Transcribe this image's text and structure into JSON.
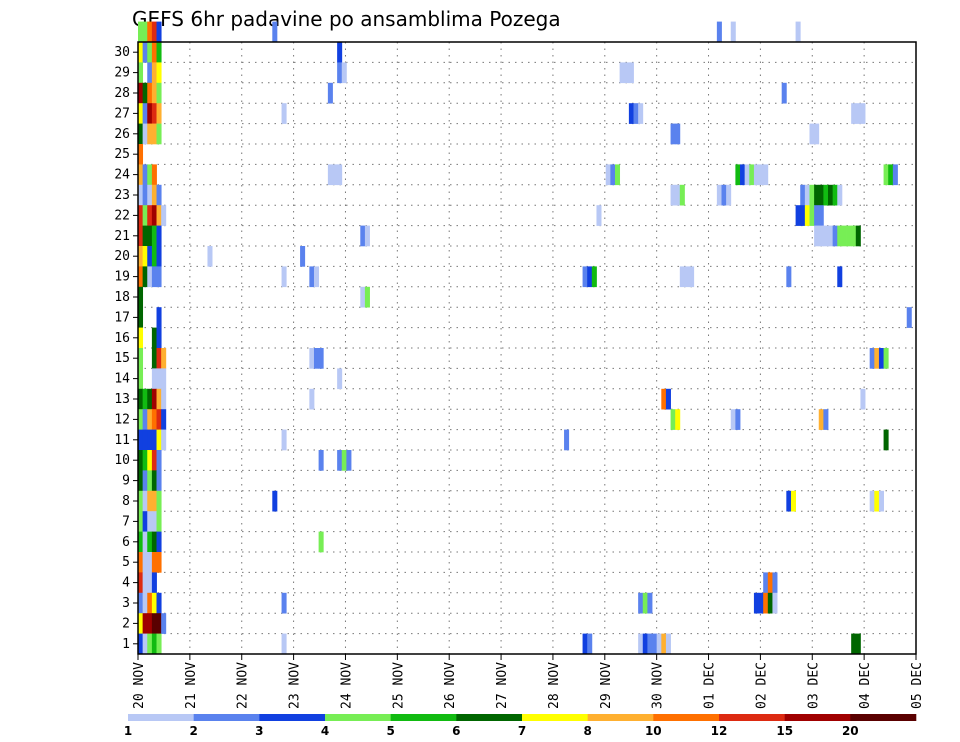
{
  "chart_data": {
    "type": "heatmap",
    "title": "GEFS 6hr padavine po ansamblima Pozega",
    "x_tick_labels": [
      "20 NOV",
      "21 NOV",
      "22 NOV",
      "23 NOV",
      "24 NOV",
      "25 NOV",
      "26 NOV",
      "27 NOV",
      "28 NOV",
      "29 NOV",
      "30 NOV",
      "01 DEC",
      "02 DEC",
      "03 DEC",
      "04 DEC",
      "05 DEC"
    ],
    "y_tick_labels": [
      "1",
      "2",
      "3",
      "4",
      "5",
      "6",
      "7",
      "8",
      "9",
      "10",
      "11",
      "12",
      "13",
      "14",
      "15",
      "16",
      "17",
      "18",
      "19",
      "20",
      "21",
      "22",
      "23",
      "24",
      "25",
      "26",
      "27",
      "28",
      "29",
      "30"
    ],
    "grid": "dotted",
    "colorbar": {
      "placement": "bottom",
      "labels": [
        "1",
        "2",
        "3",
        "4",
        "5",
        "6",
        "7",
        "8",
        "10",
        "12",
        "15",
        "20"
      ],
      "colors": [
        "#b8c8f5",
        "#5a82ee",
        "#1140e0",
        "#77ee55",
        "#11bb11",
        "#006600",
        "#ffff00",
        "#ffb030",
        "#ff7000",
        "#dd2a11",
        "#a00000",
        "#5a0000"
      ]
    },
    "cells": [
      [
        0,
        30,
        [
          4,
          4,
          9,
          10,
          3
        ]
      ],
      [
        29,
        30,
        2
      ],
      [
        125,
        30,
        2
      ],
      [
        128,
        30,
        1
      ],
      [
        142,
        30,
        1
      ],
      [
        0,
        29,
        [
          7,
          2,
          4,
          9,
          5
        ]
      ],
      [
        43,
        29,
        3
      ],
      [
        0,
        28,
        [
          4,
          0,
          2,
          8,
          7
        ]
      ],
      [
        43,
        28,
        [
          2,
          1
        ]
      ],
      [
        104,
        28,
        [
          1,
          1,
          1
        ]
      ],
      [
        0,
        27,
        [
          11,
          6,
          9,
          8,
          4
        ]
      ],
      [
        41,
        27,
        2
      ],
      [
        139,
        27,
        2
      ],
      [
        0,
        26,
        [
          7,
          2,
          11,
          10,
          8
        ]
      ],
      [
        31,
        26,
        1
      ],
      [
        106,
        26,
        [
          3,
          2,
          1
        ]
      ],
      [
        154,
        26,
        [
          1,
          1,
          1
        ]
      ],
      [
        0,
        25,
        [
          6,
          1,
          8,
          8,
          4
        ]
      ],
      [
        115,
        25,
        [
          2,
          2
        ]
      ],
      [
        145,
        25,
        [
          1,
          1
        ]
      ],
      [
        0,
        24,
        [
          9
        ]
      ],
      [
        0,
        23,
        [
          8,
          2,
          4,
          9,
          0
        ]
      ],
      [
        41,
        23,
        [
          1,
          1,
          1
        ]
      ],
      [
        101,
        23,
        [
          1,
          2,
          4
        ]
      ],
      [
        129,
        23,
        [
          5,
          3,
          1,
          4,
          1,
          1,
          1
        ]
      ],
      [
        161,
        23,
        [
          4,
          5,
          2
        ]
      ],
      [
        0,
        22,
        [
          1,
          2,
          1,
          8,
          2
        ]
      ],
      [
        115,
        22,
        [
          1,
          1,
          4
        ]
      ],
      [
        125,
        22,
        [
          1,
          2,
          1
        ]
      ],
      [
        143,
        22,
        [
          2,
          1,
          4,
          6,
          6,
          5,
          6,
          5,
          1
        ]
      ],
      [
        0,
        21,
        [
          10,
          4,
          10,
          11,
          8,
          1
        ]
      ],
      [
        99,
        21,
        1
      ],
      [
        142,
        21,
        [
          3,
          3,
          7,
          4,
          2,
          2
        ]
      ],
      [
        0,
        20,
        [
          10,
          6,
          6,
          5,
          3
        ]
      ],
      [
        48,
        20,
        [
          2,
          1
        ]
      ],
      [
        146,
        20,
        [
          1,
          1,
          1,
          1,
          2,
          4,
          4,
          4,
          4,
          6
        ]
      ],
      [
        0,
        19,
        [
          8,
          7,
          3,
          5,
          3
        ]
      ],
      [
        15,
        19,
        1
      ],
      [
        35,
        19,
        2
      ],
      [
        0,
        18,
        [
          9,
          6,
          1,
          2,
          2
        ]
      ],
      [
        31,
        18,
        1
      ],
      [
        37,
        18,
        [
          2,
          1
        ]
      ],
      [
        96,
        18,
        [
          2,
          3,
          5
        ]
      ],
      [
        117,
        18,
        [
          1,
          1,
          1
        ]
      ],
      [
        140,
        18,
        2
      ],
      [
        151,
        18,
        3
      ],
      [
        0,
        17,
        [
          6
        ]
      ],
      [
        48,
        17,
        [
          1,
          4
        ]
      ],
      [
        0,
        16,
        [
          6,
          0,
          0,
          0,
          3
        ]
      ],
      [
        166,
        16,
        2
      ],
      [
        0,
        15,
        [
          7,
          0,
          0,
          6,
          3
        ]
      ],
      [
        0,
        14,
        [
          4,
          0,
          0,
          6,
          10,
          8
        ]
      ],
      [
        37,
        14,
        [
          1,
          2,
          2
        ]
      ],
      [
        158,
        14,
        [
          2,
          8,
          3,
          4
        ]
      ],
      [
        0,
        13,
        [
          4,
          0,
          0,
          1,
          1,
          1
        ]
      ],
      [
        43,
        13,
        1
      ],
      [
        0,
        12,
        [
          6,
          5,
          6,
          11,
          8,
          1
        ]
      ],
      [
        37,
        12,
        1
      ],
      [
        113,
        12,
        [
          9,
          3
        ]
      ],
      [
        156,
        12,
        1
      ],
      [
        0,
        11,
        [
          4,
          2,
          8,
          9,
          10,
          3
        ]
      ],
      [
        115,
        11,
        [
          4,
          7
        ]
      ],
      [
        128,
        11,
        [
          1,
          2
        ]
      ],
      [
        147,
        11,
        [
          8,
          2
        ]
      ],
      [
        0,
        10,
        [
          3,
          3,
          3,
          3,
          7,
          1
        ]
      ],
      [
        31,
        10,
        1
      ],
      [
        92,
        10,
        2
      ],
      [
        161,
        10,
        6
      ],
      [
        0,
        9,
        [
          6,
          5,
          7,
          10,
          2
        ]
      ],
      [
        39,
        9,
        2
      ],
      [
        43,
        9,
        [
          2,
          4,
          2
        ]
      ],
      [
        0,
        8,
        [
          6,
          2,
          4,
          6,
          2
        ]
      ],
      [
        0,
        7,
        [
          4,
          1,
          8,
          8,
          4
        ]
      ],
      [
        29,
        7,
        3
      ],
      [
        140,
        7,
        [
          3,
          7
        ]
      ],
      [
        158,
        7,
        [
          1,
          7,
          1
        ]
      ],
      [
        0,
        6,
        [
          4,
          3,
          1,
          1,
          4
        ]
      ],
      [
        0,
        5,
        [
          5,
          1,
          5,
          6,
          3
        ]
      ],
      [
        39,
        5,
        4
      ],
      [
        0,
        4,
        [
          9,
          1,
          1,
          9,
          9
        ]
      ],
      [
        0,
        3,
        [
          10,
          1,
          1,
          3
        ]
      ],
      [
        135,
        3,
        [
          2,
          9,
          2
        ]
      ],
      [
        0,
        2,
        [
          2,
          1,
          9,
          7,
          3
        ]
      ],
      [
        31,
        2,
        2
      ],
      [
        108,
        2,
        [
          2,
          4,
          2
        ]
      ],
      [
        133,
        2,
        [
          3,
          3,
          9,
          6,
          1
        ]
      ],
      [
        0,
        1,
        [
          7,
          11,
          11,
          12,
          12,
          2
        ]
      ],
      [
        0,
        0,
        [
          3,
          1,
          4,
          5,
          4
        ]
      ],
      [
        31,
        0,
        1
      ],
      [
        96,
        0,
        [
          3,
          2
        ]
      ],
      [
        108,
        0,
        [
          1,
          3,
          2,
          2,
          1,
          8,
          1
        ]
      ],
      [
        154,
        0,
        [
          6,
          6
        ]
      ]
    ]
  }
}
